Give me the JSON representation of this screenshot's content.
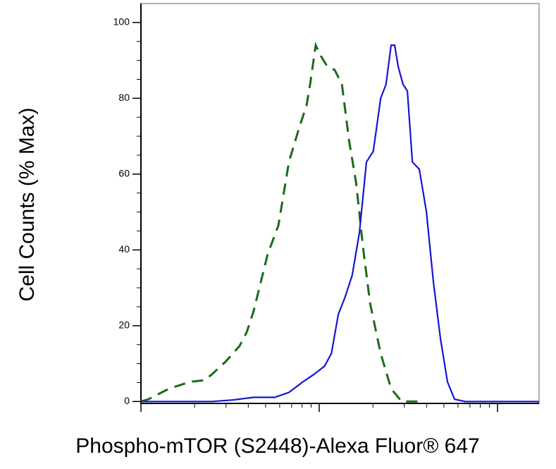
{
  "chart_data": {
    "type": "line",
    "xlabel": "Phospho-mTOR (S2448)-Alexa Fluor® 647",
    "ylabel": "Cell Counts (% Max)",
    "xscale": "log",
    "xlim": [
      1,
      171
    ],
    "xticks": [
      1,
      10,
      100
    ],
    "ylim": [
      -0.5,
      105
    ],
    "yticks": [
      0,
      20,
      40,
      60,
      80,
      100
    ],
    "series": [
      {
        "color": "#1a6b1a",
        "dash": true,
        "x": [
          1,
          1.1,
          1.44,
          1.89,
          2.27,
          2.49,
          2.98,
          3.57,
          3.92,
          4.29,
          5.14,
          5.9,
          6.76,
          7.75,
          8.49,
          8.89,
          9.55,
          10.2,
          11.1,
          12.2,
          13.4,
          14.7,
          16.1,
          17.6,
          19.3,
          22.1,
          25.3,
          29.0,
          38.1
        ],
        "values": [
          0,
          0.6,
          3.4,
          5.2,
          5.6,
          7.1,
          10.5,
          14.6,
          18.3,
          23.9,
          38.9,
          46.4,
          63.2,
          72.5,
          78.1,
          83.7,
          94.0,
          91.2,
          88.4,
          87.5,
          83.7,
          68.8,
          57.6,
          40.7,
          25.8,
          12.7,
          3.4,
          0,
          0
        ]
      },
      {
        "color": "#1414d4",
        "dash": false,
        "x": [
          1,
          1.58,
          2.49,
          3.26,
          4.29,
          5.63,
          6.76,
          8.11,
          9.29,
          10.7,
          11.7,
          12.8,
          14.0,
          15.3,
          16.8,
          18.4,
          20.1,
          22.1,
          23.7,
          25.3,
          26.5,
          27.7,
          29.5,
          31.2,
          33.3,
          36.4,
          39.9,
          43.7,
          47.9,
          52.4,
          57.4,
          65.8,
          171
        ],
        "values": [
          0,
          0,
          0,
          0.4,
          1.1,
          1.1,
          2.4,
          5.2,
          7.1,
          9.3,
          12.7,
          23.0,
          27.7,
          33.3,
          44.5,
          63.2,
          66.0,
          80.0,
          83.7,
          94.0,
          94.0,
          88.4,
          83.7,
          81.9,
          63.2,
          61.3,
          50.1,
          31.4,
          16.4,
          5.2,
          0.6,
          0,
          0
        ]
      }
    ]
  }
}
